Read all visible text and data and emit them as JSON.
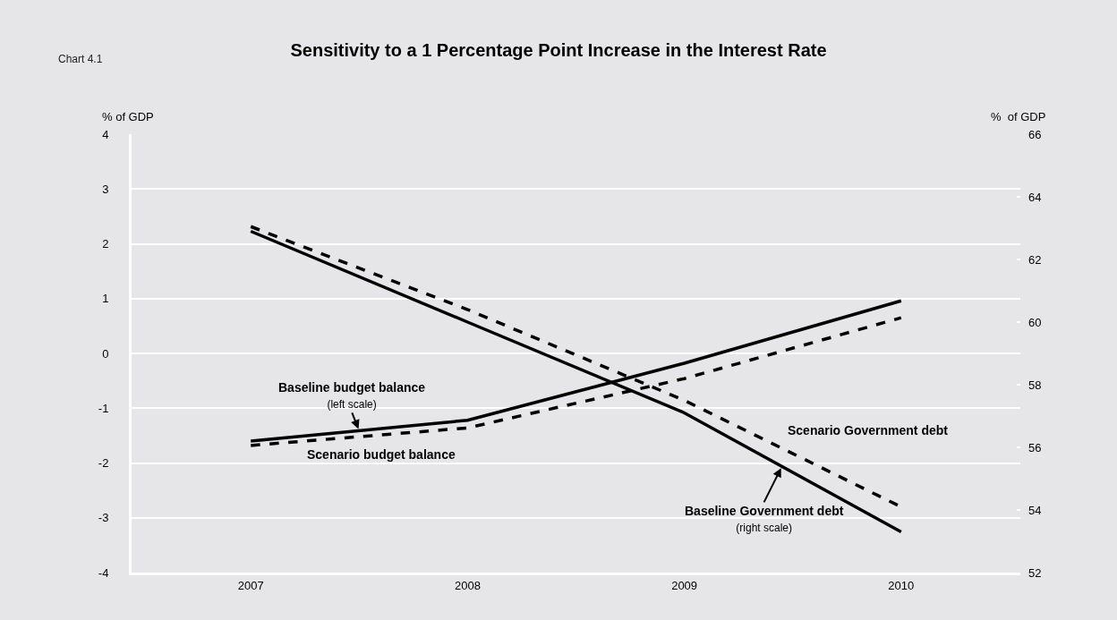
{
  "chart_data": {
    "type": "line",
    "title": "Sensitivity to a 1 Percentage Point Increase in the Interest Rate",
    "ylabel": "% of GDP",
    "y2label": "%  of GDP",
    "categories": [
      "2007",
      "2008",
      "2009",
      "2010"
    ],
    "series": [
      {
        "name": "Baseline budget balance",
        "color": "#000000",
        "line_style": "solid",
        "values": [
          -1.6,
          -1.22,
          -0.18,
          0.96
        ]
      },
      {
        "name": "Scenario budget balance",
        "color": "#000000",
        "line_style": "dashed",
        "values": [
          -1.68,
          -1.36,
          -0.46,
          0.65
        ]
      },
      {
        "name": "Baseline Government debt",
        "color": "#000000",
        "line_style": "solid",
        "axis": "y2",
        "values": [
          62.9,
          60.0,
          57.1,
          53.3
        ]
      },
      {
        "name": "Scenario Government debt",
        "color": "#000000",
        "line_style": "dashed",
        "axis": "y2",
        "values": [
          63.05,
          60.4,
          57.5,
          54.1
        ]
      }
    ],
    "ylim": [
      -4,
      4
    ],
    "yticks": [
      -4,
      -3,
      -2,
      -1,
      0,
      1,
      2,
      3,
      4
    ],
    "y2lim": [
      52,
      66
    ],
    "y2ticks": [
      52,
      54,
      56,
      58,
      60,
      62,
      64,
      66
    ],
    "grid": "y",
    "legend": false,
    "marker": "none",
    "annotations": [
      "Chart 4.1",
      "(left scale)",
      "(right scale)"
    ]
  }
}
